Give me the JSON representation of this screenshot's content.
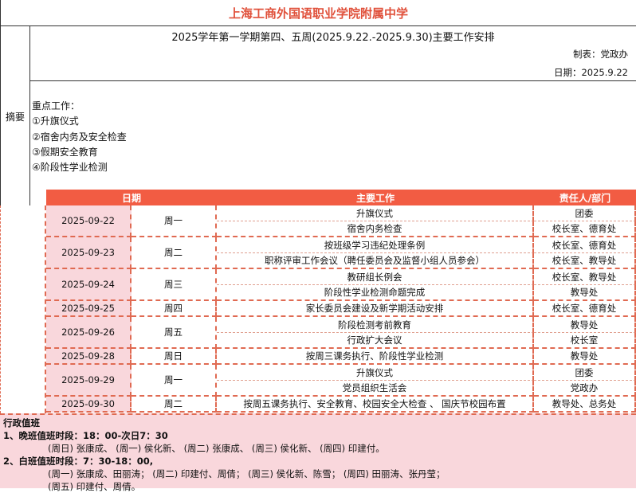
{
  "school_title": "上海工商外国语职业学院附属中学",
  "summary_label": "摘要",
  "subtitle": "2025学年第一学期第四、五周(2025.9.22.-2025.9.30)主要工作安排",
  "made_by": "制表：党政办",
  "date": "日期：2025.9.22",
  "key_work": {
    "heading": "重点工作：",
    "items": [
      "①升旗仪式",
      "②宿舍内务及安全检查",
      "③假期安全教育",
      "④阶段性学业检测"
    ]
  },
  "table": {
    "headers": {
      "date": "日期",
      "work": "主要工作",
      "dept": "责任人/部门"
    },
    "days": [
      {
        "date": "2025-09-22",
        "weekday": "周一",
        "tasks": [
          {
            "work": "升旗仪式",
            "dept": "团委"
          },
          {
            "work": "宿舍内务检查",
            "dept": "校长室、德育处"
          }
        ]
      },
      {
        "date": "2025-09-23",
        "weekday": "周二",
        "tasks": [
          {
            "work": "按班级学习违纪处理条例",
            "dept": "校长室、德育处"
          },
          {
            "work": "职称评审工作会议（聘任委员会及监督小组人员参会）",
            "dept": "校长室、教导处"
          }
        ]
      },
      {
        "date": "2025-09-24",
        "weekday": "周三",
        "tasks": [
          {
            "work": "教研组长例会",
            "dept": "校长室、教导处"
          },
          {
            "work": "阶段性学业检测命题完成",
            "dept": "教导处"
          }
        ]
      },
      {
        "date": "2025-09-25",
        "weekday": "周四",
        "tasks": [
          {
            "work": "家长委员会建设及新学期活动安排",
            "dept": "校长室、德育处"
          }
        ]
      },
      {
        "date": "2025-09-26",
        "weekday": "周五",
        "tasks": [
          {
            "work": "阶段检测考前教育",
            "dept": "教导处"
          },
          {
            "work": "行政扩大会议",
            "dept": "校长室"
          }
        ]
      },
      {
        "date": "2025-09-28",
        "weekday": "周日",
        "tasks": [
          {
            "work": "按周三课务执行、阶段性学业检测",
            "dept": "教导处"
          }
        ]
      },
      {
        "date": "2025-09-29",
        "weekday": "周一",
        "tasks": [
          {
            "work": "升旗仪式",
            "dept": "团委"
          },
          {
            "work": "党员组织生活会",
            "dept": "党政办"
          }
        ]
      },
      {
        "date": "2025-09-30",
        "weekday": "周二",
        "tasks": [
          {
            "work": "按周五课务执行、安全教育、校园安全大检查 、 国庆节校园布置",
            "dept": "教导处、总务处"
          }
        ]
      }
    ]
  },
  "duty": {
    "title": "行政值班",
    "night_label": "1、晚班值班时段：18：00-次日7：30",
    "night_line": "(周日) 张康成、 (周一) 侯化新、 (周二) 张康成、 (周三) 侯化新、 (周四) 印建付。",
    "day_label": "2、白班值班时段：7：30-18：00,",
    "day_line1": "(周一) 张康成、田丽涛； (周二) 印建付、周倩； (周三) 侯化新、陈雪； (周四) 田丽涛、张丹莹；",
    "day_line2": "(周五) 印建付、周倩。"
  },
  "colors": {
    "header": "#f25c43",
    "title": "#e0503a",
    "pink": "#f9d7dc"
  }
}
